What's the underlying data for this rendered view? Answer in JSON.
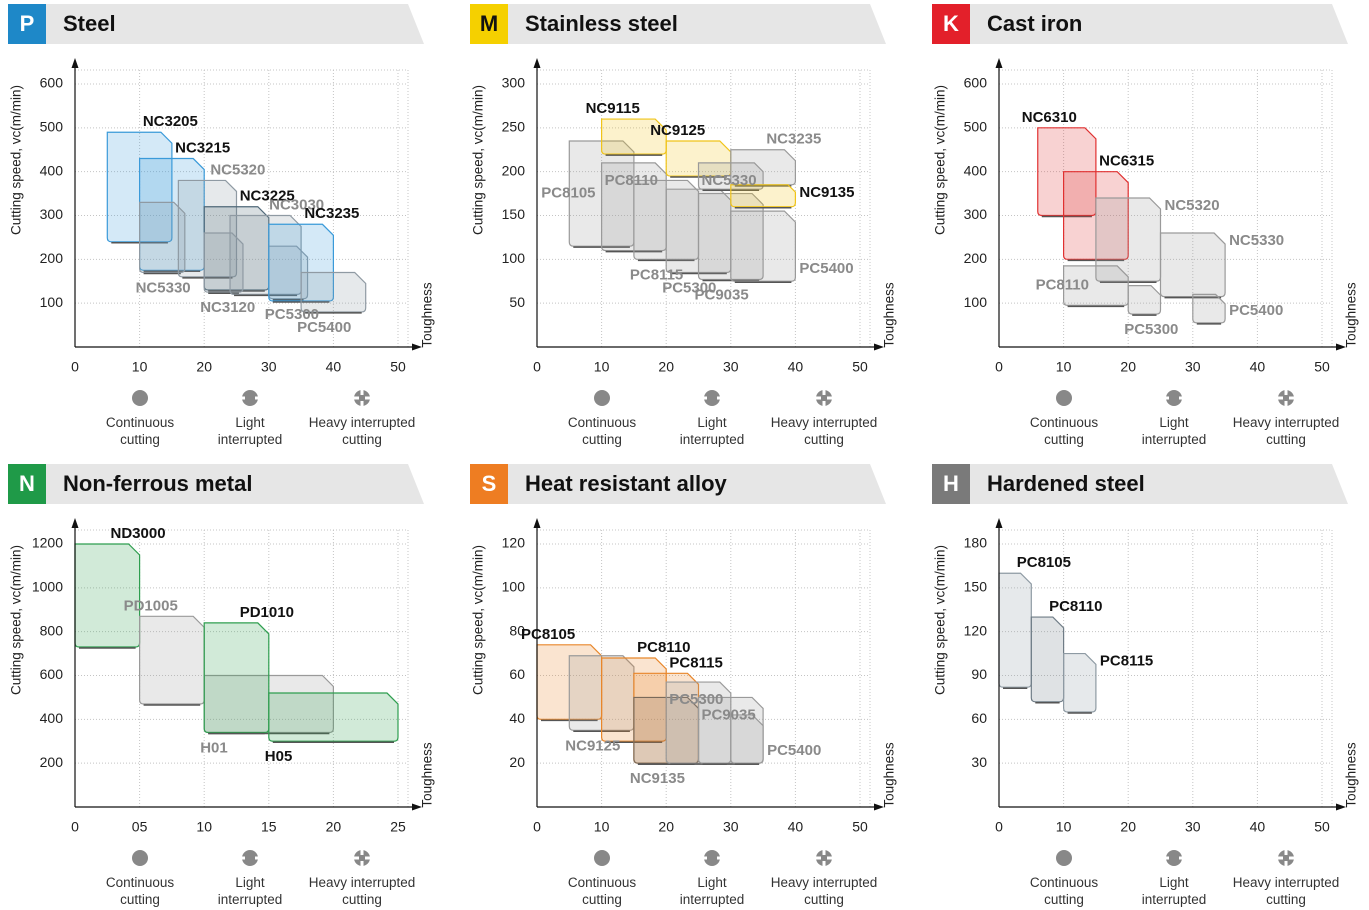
{
  "cutting_types": [
    "Continuous cutting",
    "Light interrupted",
    "Heavy interrupted cutting"
  ],
  "chart_data": [
    {
      "type": "range",
      "badge": "P",
      "badge_color": "#1e88c8",
      "title": "Steel",
      "y_label": "Cutting speed, vc(m/min)",
      "x_label": "Toughness",
      "xlim": [
        0,
        50
      ],
      "ylim": [
        0,
        600
      ],
      "xticks": [
        0,
        10,
        20,
        30,
        40,
        50
      ],
      "yticks": [
        100,
        200,
        300,
        400,
        500,
        600
      ],
      "grid": true,
      "series": [
        {
          "name": "NC3205",
          "color": "#3a9ad9",
          "emphasis": true,
          "x": [
            5,
            15
          ],
          "values": [
            240,
            490
          ]
        },
        {
          "name": "NC3215",
          "color": "#3a9ad9",
          "emphasis": true,
          "x": [
            10,
            20
          ],
          "values": [
            175,
            430
          ]
        },
        {
          "name": "NC5330",
          "color": "#8f9aa3",
          "emphasis": false,
          "x": [
            10,
            17
          ],
          "values": [
            170,
            330
          ]
        },
        {
          "name": "NC5320",
          "color": "#8f9aa3",
          "emphasis": false,
          "x": [
            16,
            25
          ],
          "values": [
            160,
            380
          ]
        },
        {
          "name": "NC3225",
          "color": "#4f6878",
          "emphasis": true,
          "x": [
            20,
            30
          ],
          "values": [
            130,
            320
          ]
        },
        {
          "name": "NC3120",
          "color": "#8f9aa3",
          "emphasis": false,
          "x": [
            20,
            26
          ],
          "values": [
            125,
            260
          ]
        },
        {
          "name": "NC3030",
          "color": "#8f9aa3",
          "emphasis": false,
          "x": [
            24,
            35
          ],
          "values": [
            120,
            300
          ]
        },
        {
          "name": "PC5300",
          "color": "#8f9aa3",
          "emphasis": false,
          "x": [
            30,
            36
          ],
          "values": [
            110,
            230
          ]
        },
        {
          "name": "NC3235",
          "color": "#3a9ad9",
          "emphasis": true,
          "x": [
            30,
            40
          ],
          "values": [
            105,
            280
          ]
        },
        {
          "name": "PC5400",
          "color": "#8f9aa3",
          "emphasis": false,
          "x": [
            35,
            45
          ],
          "values": [
            80,
            170
          ]
        }
      ]
    },
    {
      "type": "range",
      "badge": "M",
      "badge_color": "#f5d000",
      "title": "Stainless steel",
      "y_label": "Cutting speed, vc(m/min)",
      "x_label": "Toughness",
      "xlim": [
        0,
        50
      ],
      "ylim": [
        0,
        300
      ],
      "xticks": [
        0,
        10,
        20,
        30,
        40,
        50
      ],
      "yticks": [
        50,
        100,
        150,
        200,
        250,
        300
      ],
      "grid": true,
      "series": [
        {
          "name": "PC8105",
          "color": "#9a9a9a",
          "emphasis": false,
          "x": [
            5,
            15
          ],
          "values": [
            115,
            235
          ]
        },
        {
          "name": "PC8110",
          "color": "#9a9a9a",
          "emphasis": false,
          "x": [
            10,
            20
          ],
          "values": [
            110,
            210
          ]
        },
        {
          "name": "PC8115",
          "color": "#9a9a9a",
          "emphasis": false,
          "x": [
            15,
            25
          ],
          "values": [
            100,
            190
          ]
        },
        {
          "name": "PC5300",
          "color": "#9a9a9a",
          "emphasis": false,
          "x": [
            20,
            30
          ],
          "values": [
            85,
            180
          ]
        },
        {
          "name": "PC9035",
          "color": "#9a9a9a",
          "emphasis": false,
          "x": [
            25,
            35
          ],
          "values": [
            77,
            175
          ]
        },
        {
          "name": "PC5400",
          "color": "#9a9a9a",
          "emphasis": false,
          "x": [
            30,
            40
          ],
          "values": [
            75,
            155
          ]
        },
        {
          "name": "NC9115",
          "color": "#f0c419",
          "emphasis": true,
          "x": [
            10,
            20
          ],
          "values": [
            220,
            260
          ]
        },
        {
          "name": "NC9125",
          "color": "#f0c419",
          "emphasis": true,
          "x": [
            20,
            30
          ],
          "values": [
            195,
            235
          ]
        },
        {
          "name": "NC5330",
          "color": "#9a9a9a",
          "emphasis": false,
          "x": [
            25,
            35
          ],
          "values": [
            180,
            210
          ]
        },
        {
          "name": "NC3235",
          "color": "#9a9a9a",
          "emphasis": false,
          "x": [
            30,
            40
          ],
          "values": [
            185,
            225
          ]
        },
        {
          "name": "NC9135",
          "color": "#f0c419",
          "emphasis": true,
          "x": [
            30,
            40
          ],
          "values": [
            160,
            185
          ]
        }
      ]
    },
    {
      "type": "range",
      "badge": "K",
      "badge_color": "#e3202a",
      "title": "Cast iron",
      "y_label": "Cutting speed, vc(m/min)",
      "x_label": "Toughness",
      "xlim": [
        0,
        50
      ],
      "ylim": [
        0,
        600
      ],
      "xticks": [
        0,
        10,
        20,
        30,
        40,
        50
      ],
      "yticks": [
        100,
        200,
        300,
        400,
        500,
        600
      ],
      "grid": true,
      "series": [
        {
          "name": "NC6310",
          "color": "#e03030",
          "emphasis": true,
          "x": [
            6,
            15
          ],
          "values": [
            300,
            500
          ]
        },
        {
          "name": "NC6315",
          "color": "#e03030",
          "emphasis": true,
          "x": [
            10,
            20
          ],
          "values": [
            200,
            400
          ]
        },
        {
          "name": "NC5320",
          "color": "#9a9a9a",
          "emphasis": false,
          "x": [
            15,
            25
          ],
          "values": [
            150,
            340
          ]
        },
        {
          "name": "NC5330",
          "color": "#9a9a9a",
          "emphasis": false,
          "x": [
            25,
            35
          ],
          "values": [
            115,
            260
          ]
        },
        {
          "name": "PC8110",
          "color": "#9a9a9a",
          "emphasis": false,
          "x": [
            10,
            20
          ],
          "values": [
            95,
            185
          ]
        },
        {
          "name": "PC5300",
          "color": "#9a9a9a",
          "emphasis": false,
          "x": [
            20,
            25
          ],
          "values": [
            75,
            140
          ]
        },
        {
          "name": "PC5400",
          "color": "#9a9a9a",
          "emphasis": false,
          "x": [
            30,
            35
          ],
          "values": [
            55,
            120
          ]
        }
      ]
    },
    {
      "type": "range",
      "badge": "N",
      "badge_color": "#1f9a48",
      "title": "Non-ferrous metal",
      "y_label": "Cutting speed, vc(m/min)",
      "x_label": "Toughness",
      "xlim": [
        0,
        25
      ],
      "ylim": [
        0,
        1200
      ],
      "xticks": [
        0,
        {
          "value": 5,
          "label": "05"
        },
        10,
        15,
        20,
        25
      ],
      "yticks": [
        200,
        400,
        600,
        800,
        1000,
        1200
      ],
      "grid": true,
      "series": [
        {
          "name": "ND3000",
          "color": "#2e9e4f",
          "emphasis": true,
          "x": [
            0,
            5
          ],
          "values": [
            730,
            1200
          ]
        },
        {
          "name": "PD1005",
          "color": "#9a9a9a",
          "emphasis": false,
          "x": [
            5,
            10
          ],
          "values": [
            470,
            870
          ]
        },
        {
          "name": "H01",
          "color": "#9a9a9a",
          "emphasis": false,
          "x": [
            10,
            20
          ],
          "values": [
            340,
            600
          ]
        },
        {
          "name": "PD1010",
          "color": "#2e9e4f",
          "emphasis": true,
          "x": [
            10,
            15
          ],
          "values": [
            340,
            840
          ]
        },
        {
          "name": "H05",
          "color": "#2e9e4f",
          "emphasis": true,
          "x": [
            15,
            25
          ],
          "values": [
            300,
            520
          ]
        }
      ]
    },
    {
      "type": "range",
      "badge": "S",
      "badge_color": "#ee7d22",
      "title": "Heat resistant alloy",
      "y_label": "Cutting speed, vc(m/min)",
      "x_label": "Toughness",
      "xlim": [
        0,
        50
      ],
      "ylim": [
        0,
        120
      ],
      "xticks": [
        0,
        10,
        20,
        30,
        40,
        50
      ],
      "yticks": [
        20,
        40,
        60,
        80,
        100,
        120
      ],
      "grid": true,
      "series": [
        {
          "name": "PC8105",
          "color": "#e8862a",
          "emphasis": true,
          "x": [
            0,
            10
          ],
          "values": [
            40,
            74
          ]
        },
        {
          "name": "NC9125",
          "color": "#9a9a9a",
          "emphasis": false,
          "x": [
            5,
            15
          ],
          "values": [
            35,
            69
          ]
        },
        {
          "name": "PC8110",
          "color": "#e8862a",
          "emphasis": true,
          "x": [
            10,
            20
          ],
          "values": [
            30,
            68
          ]
        },
        {
          "name": "PC8115",
          "color": "#e8862a",
          "emphasis": true,
          "x": [
            15,
            25
          ],
          "values": [
            20,
            61
          ]
        },
        {
          "name": "NC9135",
          "color": "#7a6a5a",
          "emphasis": false,
          "x": [
            15,
            25
          ],
          "values": [
            20,
            50
          ]
        },
        {
          "name": "PC5300",
          "color": "#9a9a9a",
          "emphasis": false,
          "x": [
            20,
            30
          ],
          "values": [
            20,
            57
          ]
        },
        {
          "name": "PC9035",
          "color": "#9a9a9a",
          "emphasis": false,
          "x": [
            25,
            35
          ],
          "values": [
            20,
            50
          ]
        },
        {
          "name": "PC5400",
          "color": "#9a9a9a",
          "emphasis": false,
          "x": [
            30,
            35
          ],
          "values": [
            20,
            42
          ]
        }
      ]
    },
    {
      "type": "range",
      "badge": "H",
      "badge_color": "#7a7a7a",
      "title": "Hardened steel",
      "y_label": "Cutting speed, vc(m/min)",
      "x_label": "Toughness",
      "xlim": [
        0,
        50
      ],
      "ylim": [
        0,
        180
      ],
      "xticks": [
        0,
        10,
        20,
        30,
        40,
        50
      ],
      "yticks": [
        30,
        60,
        90,
        120,
        150,
        180
      ],
      "grid": true,
      "series": [
        {
          "name": "PC8105",
          "color": "#8e9aa3",
          "emphasis": true,
          "x": [
            0,
            5
          ],
          "values": [
            82,
            160
          ]
        },
        {
          "name": "PC8110",
          "color": "#6f7c86",
          "emphasis": true,
          "x": [
            5,
            10
          ],
          "values": [
            72,
            130
          ]
        },
        {
          "name": "PC8115",
          "color": "#8e9aa3",
          "emphasis": true,
          "x": [
            10,
            15
          ],
          "values": [
            65,
            105
          ]
        }
      ]
    }
  ]
}
